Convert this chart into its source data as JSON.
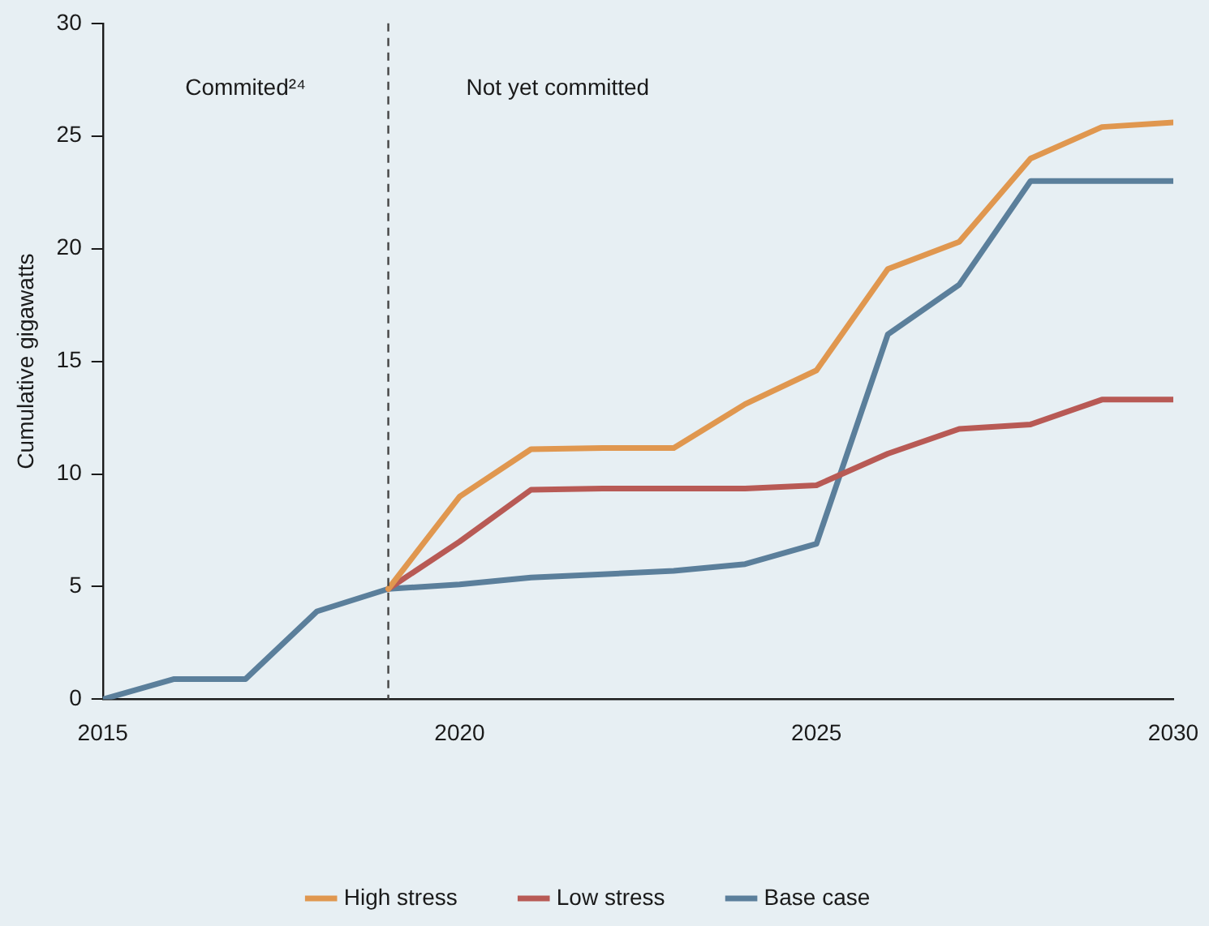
{
  "chart_data": {
    "type": "line",
    "ylabel": "Cumulative gigawatts",
    "x": [
      2015,
      2016,
      2017,
      2018,
      2019,
      2020,
      2021,
      2022,
      2023,
      2024,
      2025,
      2026,
      2027,
      2028,
      2029,
      2030
    ],
    "series": [
      {
        "name": "Base case",
        "color": "#5b7f9b",
        "values": [
          0,
          0.9,
          0.9,
          3.9,
          4.9,
          5.1,
          5.4,
          5.55,
          5.7,
          6.0,
          6.9,
          16.2,
          18.4,
          23.0,
          23.0,
          23.0
        ]
      },
      {
        "name": "Low stress",
        "color": "#b85a55",
        "values": [
          null,
          null,
          null,
          null,
          4.9,
          7.0,
          9.3,
          9.35,
          9.35,
          9.35,
          9.5,
          10.9,
          12.0,
          12.2,
          13.3,
          13.3
        ]
      },
      {
        "name": "High stress",
        "color": "#e0974f",
        "values": [
          null,
          null,
          null,
          null,
          4.9,
          9.0,
          11.1,
          11.15,
          11.15,
          13.1,
          14.6,
          19.1,
          20.3,
          24.0,
          25.4,
          25.6
        ]
      }
    ],
    "xlim": [
      2015,
      2030
    ],
    "xticks": [
      2015,
      2020,
      2025,
      2030
    ],
    "ylim": [
      0,
      30
    ],
    "yticks": [
      0,
      5,
      10,
      15,
      20,
      25,
      30
    ],
    "ref_lines": [
      {
        "axis": "x",
        "value": 2019,
        "color": "#444444",
        "line_style": "dashed"
      }
    ],
    "annotations": [
      "Commited²⁴",
      "Not yet committed"
    ],
    "grid": false,
    "legend": "bottom",
    "marker": "none",
    "line_style": "solid"
  }
}
